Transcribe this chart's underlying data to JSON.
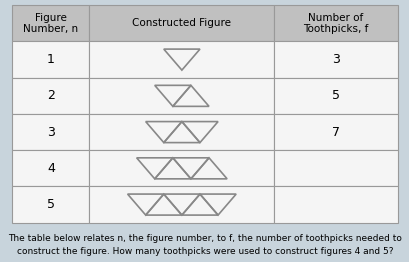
{
  "title_line1": "The table below relates n, the figure number, to f, the number of toothpicks needed to",
  "title_line2": "construct the figure. How many toothpicks were used to construct figures 4 and 5?",
  "col_headers": [
    "Figure\nNumber, n",
    "Constructed Figure",
    "Number of\nToothpicks, f"
  ],
  "rows": [
    {
      "n": "1",
      "f": "3"
    },
    {
      "n": "2",
      "f": "5"
    },
    {
      "n": "3",
      "f": "7"
    },
    {
      "n": "4",
      "f": ""
    },
    {
      "n": "5",
      "f": ""
    }
  ],
  "header_bg": "#c0c0c0",
  "row_bg": "#f5f5f5",
  "border_color": "#999999",
  "text_color": "#000000",
  "title_fontsize": 6.5,
  "table_fontsize": 9,
  "fig_bg": "#c8d4dc",
  "triangle_color": "#888888",
  "triangle_lw": 1.2
}
